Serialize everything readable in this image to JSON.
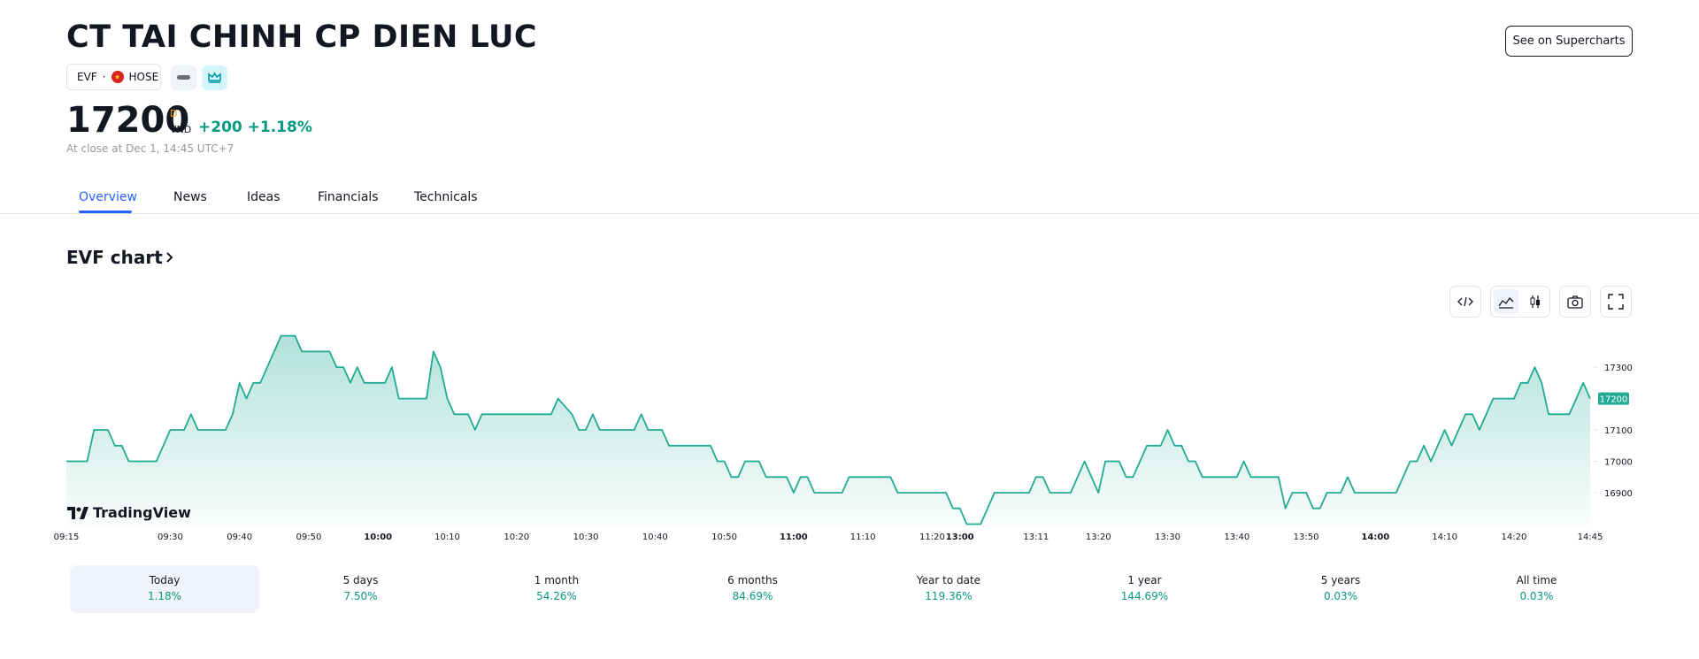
{
  "header": {
    "title": "CT TAI CHINH CP DIEN LUC",
    "symbol": "EVF",
    "exchange": "HOSE",
    "price": 17200,
    "price_flag": "D",
    "currency": "VND",
    "change": "+200",
    "change_percent": "+1.18%",
    "close_note": "At close at Dec 1, 14:45 UTC+7",
    "button": "See on Supercharts"
  },
  "tabs": [
    "Overview",
    "News",
    "Ideas",
    "Financials",
    "Technicals"
  ],
  "chart_heading": "EVF chart",
  "chart_data": {
    "type": "area",
    "color": "#22ab94",
    "watermark": "TradingView",
    "x": [
      "09:15",
      "09:18",
      "09:19",
      "09:21",
      "09:22",
      "09:23",
      "09:24",
      "09:28",
      "09:30",
      "09:32",
      "09:33",
      "09:34",
      "09:38",
      "09:39",
      "09:40",
      "09:41",
      "09:42",
      "09:43",
      "09:46",
      "09:48",
      "09:49",
      "09:53",
      "09:54",
      "09:55",
      "09:56",
      "09:57",
      "09:58",
      "10:01",
      "10:02",
      "10:03",
      "10:07",
      "10:08",
      "10:09",
      "10:10",
      "10:11",
      "10:13",
      "10:14",
      "10:15",
      "10:25",
      "10:26",
      "10:28",
      "10:29",
      "10:30",
      "10:31",
      "10:32",
      "10:37",
      "10:38",
      "10:39",
      "10:41",
      "10:42",
      "10:48",
      "10:49",
      "10:50",
      "10:51",
      "10:52",
      "10:53",
      "10:55",
      "10:56",
      "10:59",
      "11:00",
      "11:01",
      "11:02",
      "11:03",
      "11:07",
      "11:08",
      "11:14",
      "11:15",
      "11:22",
      "11:23",
      "13:00",
      "13:01",
      "13:03",
      "13:05",
      "13:10",
      "13:11",
      "13:12",
      "13:13",
      "13:16",
      "13:18",
      "13:20",
      "13:21",
      "13:23",
      "13:24",
      "13:25",
      "13:27",
      "13:29",
      "13:30",
      "13:31",
      "13:32",
      "13:33",
      "13:34",
      "13:35",
      "13:40",
      "13:41",
      "13:42",
      "13:46",
      "13:47",
      "13:48",
      "13:50",
      "13:51",
      "13:52",
      "13:53",
      "13:55",
      "13:56",
      "13:57",
      "14:03",
      "14:05",
      "14:06",
      "14:07",
      "14:08",
      "14:10",
      "14:11",
      "14:13",
      "14:14",
      "14:15",
      "14:17",
      "14:20",
      "14:21",
      "14:22",
      "14:23",
      "14:24",
      "14:25",
      "14:28",
      "14:30",
      "14:45"
    ],
    "values": [
      17000,
      17000,
      17100,
      17100,
      17050,
      17050,
      17000,
      17000,
      17100,
      17100,
      17150,
      17100,
      17100,
      17150,
      17250,
      17200,
      17250,
      17250,
      17400,
      17400,
      17350,
      17350,
      17300,
      17300,
      17250,
      17300,
      17250,
      17250,
      17300,
      17200,
      17200,
      17350,
      17300,
      17200,
      17150,
      17150,
      17100,
      17150,
      17150,
      17200,
      17150,
      17100,
      17100,
      17150,
      17100,
      17100,
      17150,
      17100,
      17100,
      17050,
      17050,
      17000,
      17000,
      16950,
      16950,
      17000,
      17000,
      16950,
      16950,
      16900,
      16950,
      16950,
      16900,
      16900,
      16950,
      16950,
      16900,
      16900,
      16850,
      16850,
      16800,
      16800,
      16900,
      16900,
      16950,
      16950,
      16900,
      16900,
      17000,
      16900,
      17000,
      17000,
      16950,
      16950,
      17050,
      17050,
      17100,
      17050,
      17050,
      17000,
      17000,
      16950,
      16950,
      17000,
      16950,
      16950,
      16850,
      16900,
      16900,
      16850,
      16850,
      16900,
      16900,
      16950,
      16900,
      16900,
      17000,
      17000,
      17050,
      17000,
      17100,
      17050,
      17150,
      17150,
      17100,
      17200,
      17200,
      17250,
      17250,
      17300,
      17250,
      17150,
      17150,
      17250,
      17200
    ],
    "ylim": [
      16790,
      17430
    ],
    "yticks": [
      16900,
      17000,
      17100,
      17300
    ],
    "xticks": [
      "09:15",
      "09:30",
      "09:40",
      "09:50",
      "10:00",
      "10:10",
      "10:20",
      "10:30",
      "10:40",
      "10:50",
      "11:00",
      "11:10",
      "11:20",
      "13:00",
      "13:11",
      "13:20",
      "13:30",
      "13:40",
      "13:50",
      "14:00",
      "14:10",
      "14:20",
      "14:45"
    ]
  },
  "periods": [
    {
      "label": "Today",
      "change": "1.18%"
    },
    {
      "label": "5 days",
      "change": "7.50%"
    },
    {
      "label": "1 month",
      "change": "54.26%"
    },
    {
      "label": "6 months",
      "change": "84.69%"
    },
    {
      "label": "Year to date",
      "change": "119.36%"
    },
    {
      "label": "1 year",
      "change": "144.69%"
    },
    {
      "label": "5 years",
      "change": "0.03%"
    },
    {
      "label": "All time",
      "change": "0.03%"
    }
  ]
}
